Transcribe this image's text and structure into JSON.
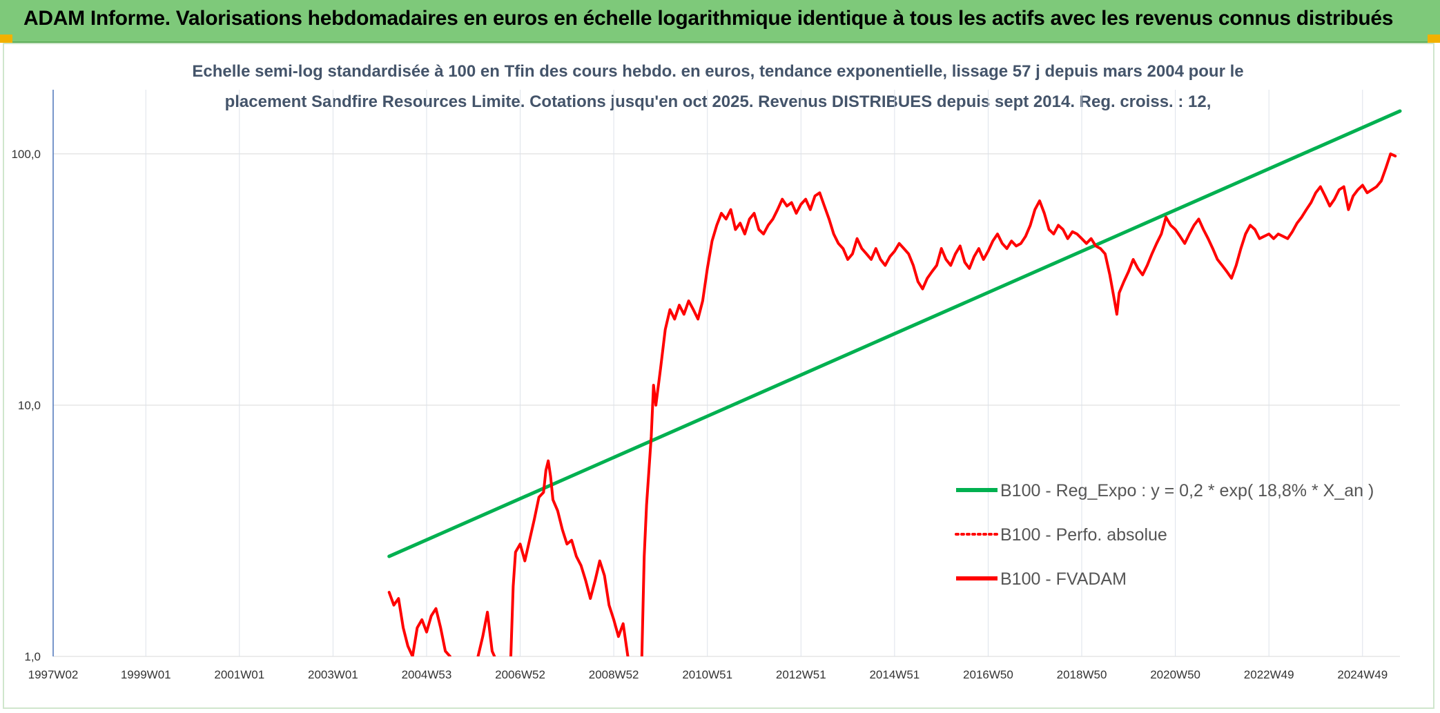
{
  "header": {
    "title": "ADAM Informe. Valorisations hebdomadaires en euros en échelle logarithmique identique à tous les actifs avec les revenus connus distribués"
  },
  "chart_data": {
    "type": "line",
    "title_line1": "Echelle semi-log standardisée à 100 en Tfin des cours hebdo. en euros, tendance exponentielle, lissage 57 j depuis mars 2004 pour le",
    "title_line2": "placement Sandfire Resources Limite. Cotations jusqu'en oct 2025. Revenus DISTRIBUES depuis sept 2014. Reg. croiss. : 12,",
    "y_scale": "log",
    "ylim": [
      1,
      180
    ],
    "xlim": [
      1997.02,
      2025.8
    ],
    "grid": true,
    "legend_position": "bottom-right",
    "x_ticks": [
      {
        "label": "1997W02",
        "x": 1997.02
      },
      {
        "label": "1999W01",
        "x": 1999.0
      },
      {
        "label": "2001W01",
        "x": 2001.0
      },
      {
        "label": "2003W01",
        "x": 2003.0
      },
      {
        "label": "2004W53",
        "x": 2005.0
      },
      {
        "label": "2006W52",
        "x": 2007.0
      },
      {
        "label": "2008W52",
        "x": 2009.0
      },
      {
        "label": "2010W51",
        "x": 2011.0
      },
      {
        "label": "2012W51",
        "x": 2013.0
      },
      {
        "label": "2014W51",
        "x": 2015.0
      },
      {
        "label": "2016W50",
        "x": 2017.0
      },
      {
        "label": "2018W50",
        "x": 2019.0
      },
      {
        "label": "2020W50",
        "x": 2021.0
      },
      {
        "label": "2022W49",
        "x": 2023.0
      },
      {
        "label": "2024W49",
        "x": 2025.0
      }
    ],
    "y_ticks": [
      {
        "label": "1,0",
        "value": 1
      },
      {
        "label": "10,0",
        "value": 10
      },
      {
        "label": "100,0",
        "value": 100
      }
    ],
    "series": [
      {
        "name": "B100 - Reg_Expo : y = 0,2 * exp( 18,8% *  X_an )",
        "color": "#00b050",
        "dash": "solid",
        "points": [
          [
            2004.2,
            2.5
          ],
          [
            2025.8,
            148
          ]
        ]
      },
      {
        "name": "B100 - Perfo. absolue",
        "color": "#ff0000",
        "dash": "dotted",
        "points": []
      },
      {
        "name": "B100 - FVADAM",
        "color": "#ff0000",
        "dash": "solid",
        "points": [
          [
            2004.2,
            1.8
          ],
          [
            2004.3,
            1.6
          ],
          [
            2004.4,
            1.7
          ],
          [
            2004.5,
            1.3
          ],
          [
            2004.6,
            1.1
          ],
          [
            2004.7,
            1.0
          ],
          [
            2004.8,
            1.3
          ],
          [
            2004.9,
            1.4
          ],
          [
            2005.0,
            1.25
          ],
          [
            2005.1,
            1.45
          ],
          [
            2005.2,
            1.55
          ],
          [
            2005.3,
            1.3
          ],
          [
            2005.4,
            1.05
          ],
          [
            2005.5,
            1.0
          ],
          [
            2005.6,
            1.0
          ],
          [
            2006.1,
            1.0
          ],
          [
            2006.2,
            1.2
          ],
          [
            2006.3,
            1.5
          ],
          [
            2006.4,
            1.05
          ],
          [
            2006.45,
            1.0
          ],
          [
            2006.8,
            1.0
          ],
          [
            2006.85,
            1.9
          ],
          [
            2006.9,
            2.6
          ],
          [
            2007.0,
            2.8
          ],
          [
            2007.1,
            2.4
          ],
          [
            2007.2,
            2.9
          ],
          [
            2007.3,
            3.5
          ],
          [
            2007.4,
            4.3
          ],
          [
            2007.5,
            4.5
          ],
          [
            2007.55,
            5.5
          ],
          [
            2007.6,
            6.0
          ],
          [
            2007.65,
            5.2
          ],
          [
            2007.7,
            4.2
          ],
          [
            2007.8,
            3.8
          ],
          [
            2007.9,
            3.2
          ],
          [
            2008.0,
            2.8
          ],
          [
            2008.1,
            2.9
          ],
          [
            2008.2,
            2.5
          ],
          [
            2008.3,
            2.3
          ],
          [
            2008.4,
            2.0
          ],
          [
            2008.5,
            1.7
          ],
          [
            2008.6,
            2.0
          ],
          [
            2008.7,
            2.4
          ],
          [
            2008.8,
            2.1
          ],
          [
            2008.9,
            1.6
          ],
          [
            2009.0,
            1.4
          ],
          [
            2009.1,
            1.2
          ],
          [
            2009.2,
            1.35
          ],
          [
            2009.3,
            1.0
          ],
          [
            2009.6,
            1.0
          ],
          [
            2009.65,
            2.5
          ],
          [
            2009.7,
            4.0
          ],
          [
            2009.8,
            7.5
          ],
          [
            2009.85,
            12.0
          ],
          [
            2009.9,
            10.0
          ],
          [
            2010.0,
            14.0
          ],
          [
            2010.1,
            20.0
          ],
          [
            2010.2,
            24.0
          ],
          [
            2010.3,
            22.0
          ],
          [
            2010.4,
            25.0
          ],
          [
            2010.5,
            23.0
          ],
          [
            2010.6,
            26.0
          ],
          [
            2010.7,
            24.0
          ],
          [
            2010.8,
            22.0
          ],
          [
            2010.9,
            26.0
          ],
          [
            2011.0,
            35.0
          ],
          [
            2011.1,
            45.0
          ],
          [
            2011.2,
            52.0
          ],
          [
            2011.3,
            58.0
          ],
          [
            2011.4,
            55.0
          ],
          [
            2011.5,
            60.0
          ],
          [
            2011.6,
            50.0
          ],
          [
            2011.7,
            53.0
          ],
          [
            2011.8,
            48.0
          ],
          [
            2011.9,
            55.0
          ],
          [
            2012.0,
            58.0
          ],
          [
            2012.1,
            50.0
          ],
          [
            2012.2,
            48.0
          ],
          [
            2012.3,
            52.0
          ],
          [
            2012.4,
            55.0
          ],
          [
            2012.5,
            60.0
          ],
          [
            2012.6,
            66.0
          ],
          [
            2012.7,
            62.0
          ],
          [
            2012.8,
            64.0
          ],
          [
            2012.9,
            58.0
          ],
          [
            2013.0,
            63.0
          ],
          [
            2013.1,
            66.0
          ],
          [
            2013.2,
            60.0
          ],
          [
            2013.3,
            68.0
          ],
          [
            2013.4,
            70.0
          ],
          [
            2013.5,
            62.0
          ],
          [
            2013.6,
            55.0
          ],
          [
            2013.7,
            48.0
          ],
          [
            2013.8,
            44.0
          ],
          [
            2013.9,
            42.0
          ],
          [
            2014.0,
            38.0
          ],
          [
            2014.1,
            40.0
          ],
          [
            2014.2,
            46.0
          ],
          [
            2014.3,
            42.0
          ],
          [
            2014.4,
            40.0
          ],
          [
            2014.5,
            38.0
          ],
          [
            2014.6,
            42.0
          ],
          [
            2014.7,
            38.0
          ],
          [
            2014.8,
            36.0
          ],
          [
            2014.9,
            39.0
          ],
          [
            2015.0,
            41.0
          ],
          [
            2015.1,
            44.0
          ],
          [
            2015.2,
            42.0
          ],
          [
            2015.3,
            40.0
          ],
          [
            2015.4,
            36.0
          ],
          [
            2015.5,
            31.0
          ],
          [
            2015.6,
            29.0
          ],
          [
            2015.7,
            32.0
          ],
          [
            2015.8,
            34.0
          ],
          [
            2015.9,
            36.0
          ],
          [
            2016.0,
            42.0
          ],
          [
            2016.1,
            38.0
          ],
          [
            2016.2,
            36.0
          ],
          [
            2016.3,
            40.0
          ],
          [
            2016.4,
            43.0
          ],
          [
            2016.5,
            37.0
          ],
          [
            2016.6,
            35.0
          ],
          [
            2016.7,
            39.0
          ],
          [
            2016.8,
            42.0
          ],
          [
            2016.9,
            38.0
          ],
          [
            2017.0,
            41.0
          ],
          [
            2017.1,
            45.0
          ],
          [
            2017.2,
            48.0
          ],
          [
            2017.3,
            44.0
          ],
          [
            2017.4,
            42.0
          ],
          [
            2017.5,
            45.0
          ],
          [
            2017.6,
            43.0
          ],
          [
            2017.7,
            44.0
          ],
          [
            2017.8,
            47.0
          ],
          [
            2017.9,
            52.0
          ],
          [
            2018.0,
            60.0
          ],
          [
            2018.1,
            65.0
          ],
          [
            2018.2,
            58.0
          ],
          [
            2018.3,
            50.0
          ],
          [
            2018.4,
            48.0
          ],
          [
            2018.5,
            52.0
          ],
          [
            2018.6,
            50.0
          ],
          [
            2018.7,
            46.0
          ],
          [
            2018.8,
            49.0
          ],
          [
            2018.9,
            48.0
          ],
          [
            2019.0,
            46.0
          ],
          [
            2019.1,
            44.0
          ],
          [
            2019.2,
            46.0
          ],
          [
            2019.3,
            43.0
          ],
          [
            2019.4,
            42.0
          ],
          [
            2019.5,
            40.0
          ],
          [
            2019.6,
            33.0
          ],
          [
            2019.7,
            26.0
          ],
          [
            2019.75,
            23.0
          ],
          [
            2019.8,
            28.0
          ],
          [
            2019.9,
            31.0
          ],
          [
            2020.0,
            34.0
          ],
          [
            2020.1,
            38.0
          ],
          [
            2020.2,
            35.0
          ],
          [
            2020.3,
            33.0
          ],
          [
            2020.4,
            36.0
          ],
          [
            2020.5,
            40.0
          ],
          [
            2020.6,
            44.0
          ],
          [
            2020.7,
            48.0
          ],
          [
            2020.8,
            56.0
          ],
          [
            2020.9,
            52.0
          ],
          [
            2021.0,
            50.0
          ],
          [
            2021.1,
            47.0
          ],
          [
            2021.2,
            44.0
          ],
          [
            2021.3,
            48.0
          ],
          [
            2021.4,
            52.0
          ],
          [
            2021.5,
            55.0
          ],
          [
            2021.6,
            50.0
          ],
          [
            2021.7,
            46.0
          ],
          [
            2021.8,
            42.0
          ],
          [
            2021.9,
            38.0
          ],
          [
            2022.0,
            36.0
          ],
          [
            2022.1,
            34.0
          ],
          [
            2022.2,
            32.0
          ],
          [
            2022.3,
            36.0
          ],
          [
            2022.4,
            42.0
          ],
          [
            2022.5,
            48.0
          ],
          [
            2022.6,
            52.0
          ],
          [
            2022.7,
            50.0
          ],
          [
            2022.8,
            46.0
          ],
          [
            2022.9,
            47.0
          ],
          [
            2023.0,
            48.0
          ],
          [
            2023.1,
            46.0
          ],
          [
            2023.2,
            48.0
          ],
          [
            2023.3,
            47.0
          ],
          [
            2023.4,
            46.0
          ],
          [
            2023.5,
            49.0
          ],
          [
            2023.6,
            53.0
          ],
          [
            2023.7,
            56.0
          ],
          [
            2023.8,
            60.0
          ],
          [
            2023.9,
            64.0
          ],
          [
            2024.0,
            70.0
          ],
          [
            2024.1,
            74.0
          ],
          [
            2024.2,
            68.0
          ],
          [
            2024.3,
            62.0
          ],
          [
            2024.4,
            66.0
          ],
          [
            2024.5,
            72.0
          ],
          [
            2024.6,
            74.0
          ],
          [
            2024.7,
            60.0
          ],
          [
            2024.8,
            68.0
          ],
          [
            2024.9,
            72.0
          ],
          [
            2025.0,
            75.0
          ],
          [
            2025.1,
            70.0
          ],
          [
            2025.2,
            72.0
          ],
          [
            2025.3,
            74.0
          ],
          [
            2025.4,
            78.0
          ],
          [
            2025.5,
            88.0
          ],
          [
            2025.6,
            100.0
          ],
          [
            2025.7,
            98.0
          ]
        ]
      }
    ]
  }
}
